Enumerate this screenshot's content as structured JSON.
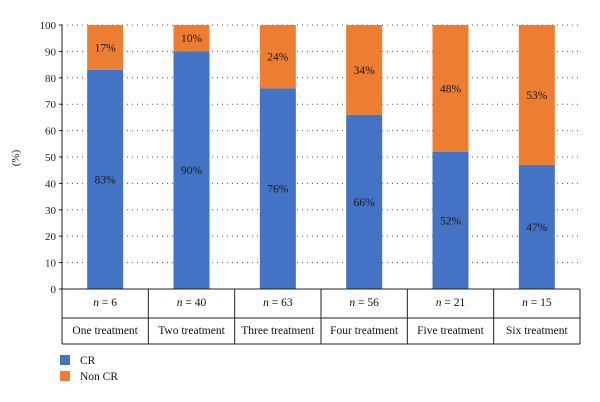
{
  "chart_data": {
    "type": "bar",
    "stacked": true,
    "categories": [
      "One treatment",
      "Two treatment",
      "Three treatment",
      "Four treatment",
      "Five treatment",
      "Six treatment"
    ],
    "n_labels": [
      "6",
      "40",
      "63",
      "56",
      "21",
      "15"
    ],
    "series": [
      {
        "name": "CR",
        "values": [
          83,
          90,
          76,
          66,
          52,
          47
        ],
        "labels": [
          "83%",
          "90%",
          "76%",
          "66%",
          "52%",
          "47%"
        ],
        "color": "#4472C4"
      },
      {
        "name": "Non CR",
        "values": [
          17,
          10,
          24,
          34,
          48,
          53
        ],
        "labels": [
          "17%",
          "10%",
          "24%",
          "34%",
          "48%",
          "53%"
        ],
        "color": "#ED7D31"
      }
    ],
    "ylabel": "(%)",
    "ylim": [
      0,
      100
    ],
    "yticks": [
      0,
      10,
      20,
      30,
      40,
      50,
      60,
      70,
      80,
      90,
      100
    ],
    "grid": "dotted-horizontal",
    "legend_position": "bottom-left"
  }
}
